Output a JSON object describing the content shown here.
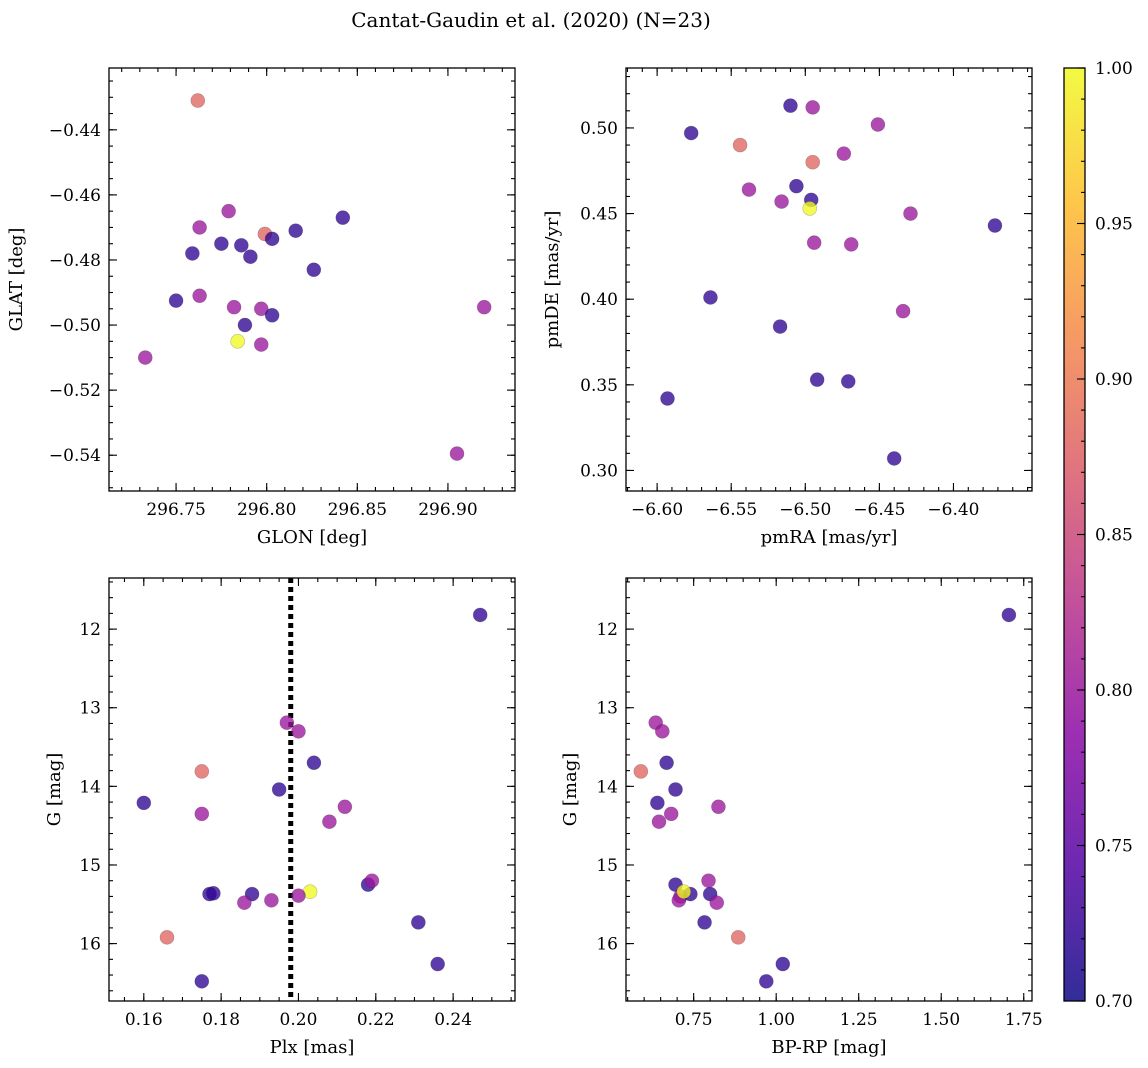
{
  "figure": {
    "title": "Cantat-Gaudin et al. (2020) (N=23)"
  },
  "colorbar": {
    "min": 0.7,
    "max": 1.0,
    "ticks": [
      "0.70",
      "0.75",
      "0.80",
      "0.85",
      "0.90",
      "0.95",
      "1.00"
    ],
    "colormap": "plasma",
    "stops": [
      "#0d0887",
      "#5302a3",
      "#8b0aa5",
      "#b83289",
      "#db5c68",
      "#f48849",
      "#febd2a",
      "#f0f921"
    ]
  },
  "chart_data": [
    {
      "type": "scatter",
      "id": "lonlat",
      "xlabel": "GLON [deg]",
      "ylabel": "GLAT [deg]",
      "xlim": [
        296.713,
        296.937
      ],
      "ylim": [
        -0.551,
        -0.421
      ],
      "xticks": [
        296.75,
        296.8,
        296.85,
        296.9
      ],
      "xticklabels": [
        "296.75",
        "296.80",
        "296.85",
        "296.90"
      ],
      "yticks": [
        -0.44,
        -0.46,
        -0.48,
        -0.5,
        -0.52,
        -0.54
      ],
      "yticklabels": [
        "−0.44",
        "−0.46",
        "−0.48",
        "−0.50",
        "−0.52",
        "−0.54"
      ],
      "x_minor": 0.01,
      "y_minor": 0.005,
      "x": [
        296.762,
        296.799,
        296.779,
        296.763,
        296.775,
        296.786,
        296.803,
        296.816,
        296.842,
        296.759,
        296.791,
        296.826,
        296.75,
        296.763,
        296.782,
        296.797,
        296.803,
        296.788,
        296.92,
        296.784,
        296.797,
        296.733,
        296.905
      ],
      "y": [
        -0.431,
        -0.472,
        -0.465,
        -0.47,
        -0.475,
        -0.4755,
        -0.4735,
        -0.471,
        -0.467,
        -0.478,
        -0.479,
        -0.483,
        -0.4925,
        -0.491,
        -0.4945,
        -0.495,
        -0.497,
        -0.5,
        -0.4945,
        -0.505,
        -0.506,
        -0.51,
        -0.5395
      ],
      "c": [
        0.88,
        0.88,
        0.8,
        0.8,
        0.72,
        0.72,
        0.72,
        0.72,
        0.72,
        0.72,
        0.72,
        0.72,
        0.72,
        0.8,
        0.8,
        0.8,
        0.72,
        0.72,
        0.8,
        1.0,
        0.8,
        0.8,
        0.8
      ]
    },
    {
      "type": "scatter",
      "id": "pm",
      "xlabel": "pmRA [mas/yr]",
      "ylabel": "pmDE [mas/yr]",
      "xlim": [
        -6.621,
        -6.347
      ],
      "ylim": [
        0.288,
        0.535
      ],
      "xticks": [
        -6.6,
        -6.55,
        -6.5,
        -6.45,
        -6.4
      ],
      "xticklabels": [
        "−6.60",
        "−6.55",
        "−6.50",
        "−6.45",
        "−6.40"
      ],
      "yticks": [
        0.5,
        0.45,
        0.4,
        0.35,
        0.3
      ],
      "yticklabels": [
        "0.50",
        "0.45",
        "0.40",
        "0.35",
        "0.30"
      ],
      "x_minor": 0.01,
      "y_minor": 0.01,
      "x": [
        -6.577,
        -6.51,
        -6.495,
        -6.451,
        -6.544,
        -6.495,
        -6.474,
        -6.538,
        -6.506,
        -6.516,
        -6.496,
        -6.497,
        -6.429,
        -6.372,
        -6.494,
        -6.469,
        -6.564,
        -6.517,
        -6.434,
        -6.593,
        -6.492,
        -6.471,
        -6.44
      ],
      "y": [
        0.497,
        0.513,
        0.512,
        0.502,
        0.49,
        0.48,
        0.485,
        0.464,
        0.466,
        0.457,
        0.458,
        0.453,
        0.45,
        0.443,
        0.433,
        0.432,
        0.401,
        0.384,
        0.393,
        0.342,
        0.353,
        0.352,
        0.307
      ],
      "c": [
        0.72,
        0.72,
        0.8,
        0.8,
        0.88,
        0.88,
        0.8,
        0.8,
        0.72,
        0.8,
        0.72,
        1.0,
        0.8,
        0.72,
        0.8,
        0.8,
        0.72,
        0.72,
        0.8,
        0.72,
        0.72,
        0.72,
        0.72
      ]
    },
    {
      "type": "scatter",
      "id": "plx",
      "xlabel": "Plx [mas]",
      "ylabel": "G [mag]",
      "xlim": [
        0.151,
        0.256
      ],
      "ylim": [
        16.73,
        11.35
      ],
      "xticks": [
        0.16,
        0.18,
        0.2,
        0.22,
        0.24
      ],
      "xticklabels": [
        "0.16",
        "0.18",
        "0.20",
        "0.22",
        "0.24"
      ],
      "yticks": [
        12,
        13,
        14,
        15,
        16
      ],
      "yticklabels": [
        "12",
        "13",
        "14",
        "15",
        "16"
      ],
      "x_minor": 0.005,
      "y_minor": 0.2,
      "vline": 0.198,
      "x": [
        0.247,
        0.197,
        0.2,
        0.204,
        0.175,
        0.16,
        0.195,
        0.212,
        0.175,
        0.208,
        0.177,
        0.188,
        0.178,
        0.203,
        0.2,
        0.218,
        0.219,
        0.186,
        0.193,
        0.231,
        0.166,
        0.236,
        0.175
      ],
      "y": [
        11.82,
        13.19,
        13.3,
        13.7,
        13.81,
        14.21,
        14.04,
        14.26,
        14.35,
        14.45,
        15.37,
        15.37,
        15.36,
        15.34,
        15.39,
        15.25,
        15.2,
        15.48,
        15.45,
        15.73,
        15.92,
        16.26,
        16.48
      ],
      "c": [
        0.72,
        0.8,
        0.8,
        0.72,
        0.88,
        0.72,
        0.72,
        0.8,
        0.8,
        0.8,
        0.72,
        0.72,
        0.72,
        1.0,
        0.8,
        0.72,
        0.8,
        0.8,
        0.8,
        0.72,
        0.88,
        0.72,
        0.72
      ]
    },
    {
      "type": "scatter",
      "id": "cmd",
      "xlabel": "BP-RP [mag]",
      "ylabel": "G [mag]",
      "xlim": [
        0.545,
        1.775
      ],
      "ylim": [
        16.73,
        11.35
      ],
      "xticks": [
        0.75,
        1.0,
        1.25,
        1.5,
        1.75
      ],
      "xticklabels": [
        "0.75",
        "1.00",
        "1.25",
        "1.50",
        "1.75"
      ],
      "yticks": [
        12,
        13,
        14,
        15,
        16
      ],
      "yticklabels": [
        "12",
        "13",
        "14",
        "15",
        "16"
      ],
      "x_minor": 0.05,
      "y_minor": 0.2,
      "x": [
        1.705,
        0.635,
        0.655,
        0.668,
        0.59,
        0.64,
        0.695,
        0.825,
        0.682,
        0.645,
        0.695,
        0.71,
        0.705,
        0.74,
        0.72,
        0.8,
        0.795,
        0.82,
        0.783,
        0.885,
        1.02,
        0.97
      ],
      "y": [
        11.82,
        13.19,
        13.3,
        13.7,
        13.81,
        14.21,
        14.04,
        14.26,
        14.35,
        14.45,
        15.25,
        15.4,
        15.45,
        15.37,
        15.34,
        15.37,
        15.2,
        15.48,
        15.73,
        15.92,
        16.26,
        16.48
      ],
      "c": [
        0.72,
        0.8,
        0.8,
        0.72,
        0.88,
        0.72,
        0.72,
        0.8,
        0.8,
        0.8,
        0.72,
        0.8,
        0.8,
        0.72,
        1.0,
        0.72,
        0.8,
        0.8,
        0.72,
        0.88,
        0.72,
        0.72
      ]
    }
  ]
}
